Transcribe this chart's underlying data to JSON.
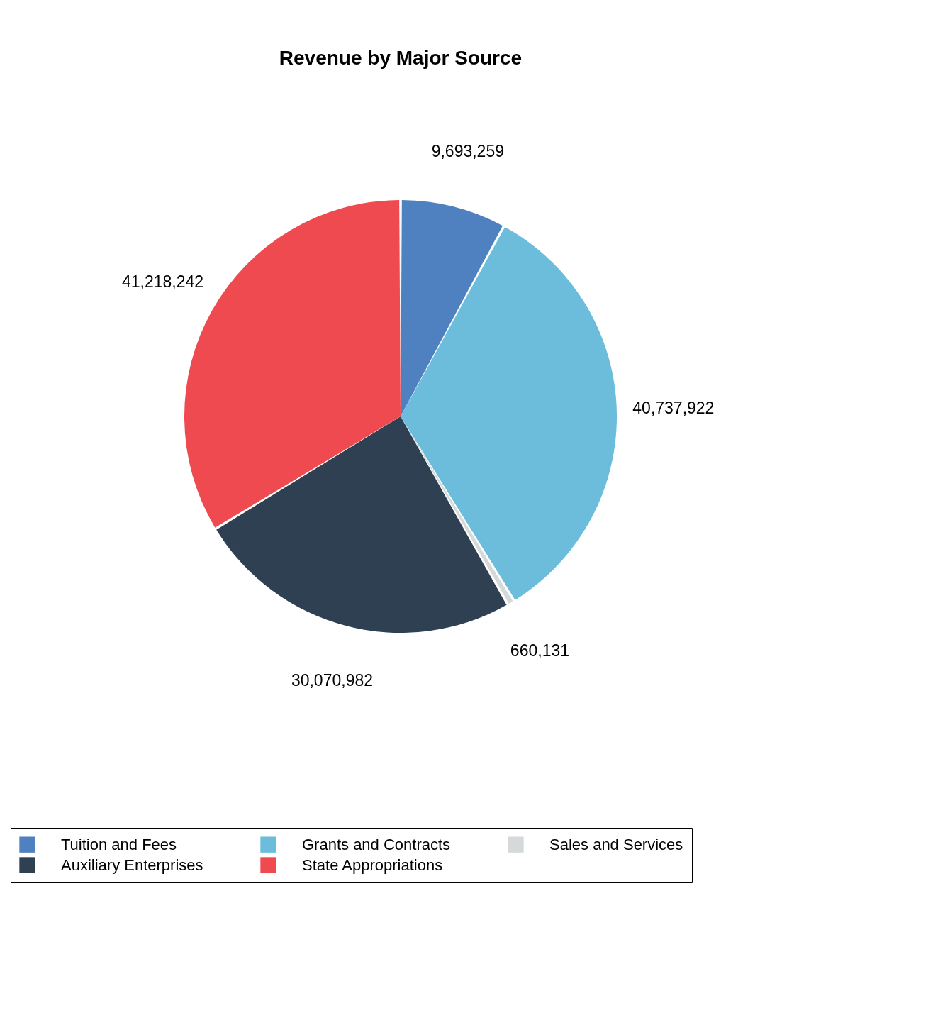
{
  "chart_data": {
    "type": "pie",
    "title": "Revenue by Major Source",
    "categories": [
      "Tuition and Fees",
      "Grants and Contracts",
      "Sales and Services",
      "Auxiliary Enterprises",
      "State Appropriations"
    ],
    "values": [
      9693259,
      40737922,
      660131,
      30070982,
      41218242
    ],
    "value_labels": [
      "9,693,259",
      "40,737,922",
      "660,131",
      "30,070,982",
      "41,218,242"
    ],
    "colors": [
      "#4f81c0",
      "#6cbcdb",
      "#d6d9da",
      "#2f4053",
      "#ef4a4f"
    ],
    "legend": "bottom"
  }
}
